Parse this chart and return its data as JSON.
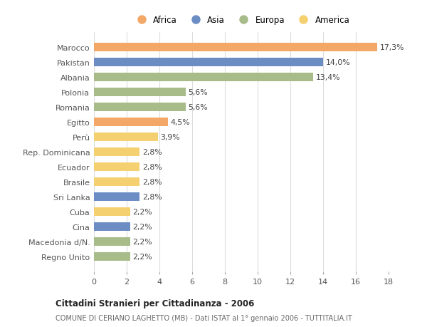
{
  "categories": [
    "Marocco",
    "Pakistan",
    "Albania",
    "Polonia",
    "Romania",
    "Egitto",
    "Perù",
    "Rep. Dominicana",
    "Ecuador",
    "Brasile",
    "Sri Lanka",
    "Cuba",
    "Cina",
    "Macedonia d/N.",
    "Regno Unito"
  ],
  "values": [
    17.3,
    14.0,
    13.4,
    5.6,
    5.6,
    4.5,
    3.9,
    2.8,
    2.8,
    2.8,
    2.8,
    2.2,
    2.2,
    2.2,
    2.2
  ],
  "labels": [
    "17,3%",
    "14,0%",
    "13,4%",
    "5,6%",
    "5,6%",
    "4,5%",
    "3,9%",
    "2,8%",
    "2,8%",
    "2,8%",
    "2,8%",
    "2,2%",
    "2,2%",
    "2,2%",
    "2,2%"
  ],
  "colors": [
    "#F4A868",
    "#6B8DC4",
    "#A8BC8A",
    "#A8BC8A",
    "#A8BC8A",
    "#F4A868",
    "#F5D070",
    "#F5D070",
    "#F5D070",
    "#F5D070",
    "#6B8DC4",
    "#F5D070",
    "#6B8DC4",
    "#A8BC8A",
    "#A8BC8A"
  ],
  "continent_colors": {
    "Africa": "#F4A868",
    "Asia": "#6B8DC4",
    "Europa": "#A8BC8A",
    "America": "#F5D070"
  },
  "legend_order": [
    "Africa",
    "Asia",
    "Europa",
    "America"
  ],
  "xlim": [
    0,
    18
  ],
  "xticks": [
    0,
    2,
    4,
    6,
    8,
    10,
    12,
    14,
    16,
    18
  ],
  "title": "Cittadini Stranieri per Cittadinanza - 2006",
  "subtitle": "COMUNE DI CERIANO LAGHETTO (MB) - Dati ISTAT al 1° gennaio 2006 - TUTTITALIA.IT",
  "background_color": "#ffffff",
  "grid_color": "#dddddd",
  "bar_height": 0.55,
  "label_fontsize": 7.8,
  "ytick_fontsize": 8.0,
  "xtick_fontsize": 8.0
}
